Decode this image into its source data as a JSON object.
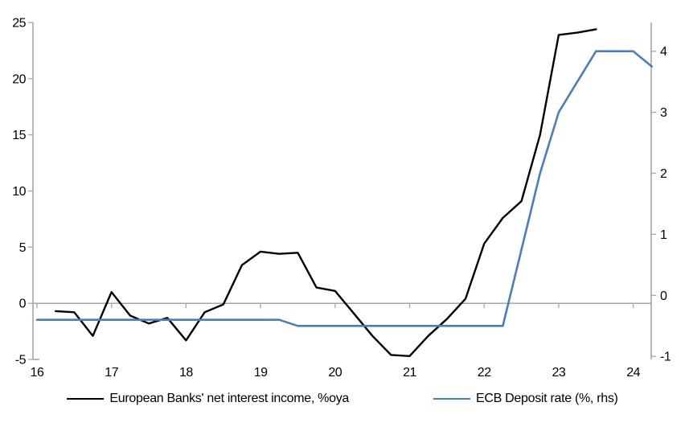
{
  "chart_data": {
    "type": "line",
    "title": "",
    "x_axis": {
      "tick_labels": [
        "16",
        "17",
        "18",
        "19",
        "20",
        "21",
        "22",
        "23",
        "24"
      ],
      "unit": "year",
      "frequency": "quarterly"
    },
    "y_axis_left": {
      "tick_labels": [
        25,
        20,
        15,
        10,
        5,
        0,
        -5
      ],
      "range": [
        -5,
        25
      ]
    },
    "y_axis_right": {
      "tick_labels": [
        4,
        3,
        2,
        1,
        0,
        -1
      ],
      "range": [
        -1.05,
        4.47
      ]
    },
    "gridlines": {
      "zero_line": true
    },
    "legend_position": "bottom",
    "series": [
      {
        "name": "European Banks' net interest income, %oya",
        "axis": "left",
        "color": "#000000",
        "stroke_width": 2.4,
        "start": "2016Q2",
        "x_start": 16.25,
        "x_step": 0.25,
        "values": [
          -0.7,
          -0.8,
          -2.9,
          1.0,
          -1.1,
          -1.8,
          -1.3,
          -3.3,
          -0.8,
          -0.1,
          3.4,
          4.6,
          4.4,
          4.5,
          1.4,
          1.1,
          -0.9,
          -2.9,
          -4.6,
          -4.7,
          -2.9,
          -1.4,
          0.4,
          5.3,
          7.6,
          9.1,
          15.0,
          23.9,
          24.1,
          24.4
        ]
      },
      {
        "name": "ECB Deposit rate (%, rhs)",
        "axis": "right",
        "color": "#4a7ebb",
        "stroke_width": 2.6,
        "start": "2016Q1",
        "x_start": 16.0,
        "x_step": 0.25,
        "values": [
          -0.4,
          -0.4,
          -0.4,
          -0.4,
          -0.4,
          -0.4,
          -0.4,
          -0.4,
          -0.4,
          -0.4,
          -0.4,
          -0.4,
          -0.4,
          -0.4,
          -0.5,
          -0.5,
          -0.5,
          -0.5,
          -0.5,
          -0.5,
          -0.5,
          -0.5,
          -0.5,
          -0.5,
          -0.5,
          -0.5,
          0.75,
          2.0,
          3.0,
          3.5,
          4.0,
          4.0,
          4.0,
          3.75
        ]
      }
    ]
  },
  "colors": {
    "axis": "#a6a6a6",
    "text": "#000000",
    "background": "#ffffff"
  }
}
